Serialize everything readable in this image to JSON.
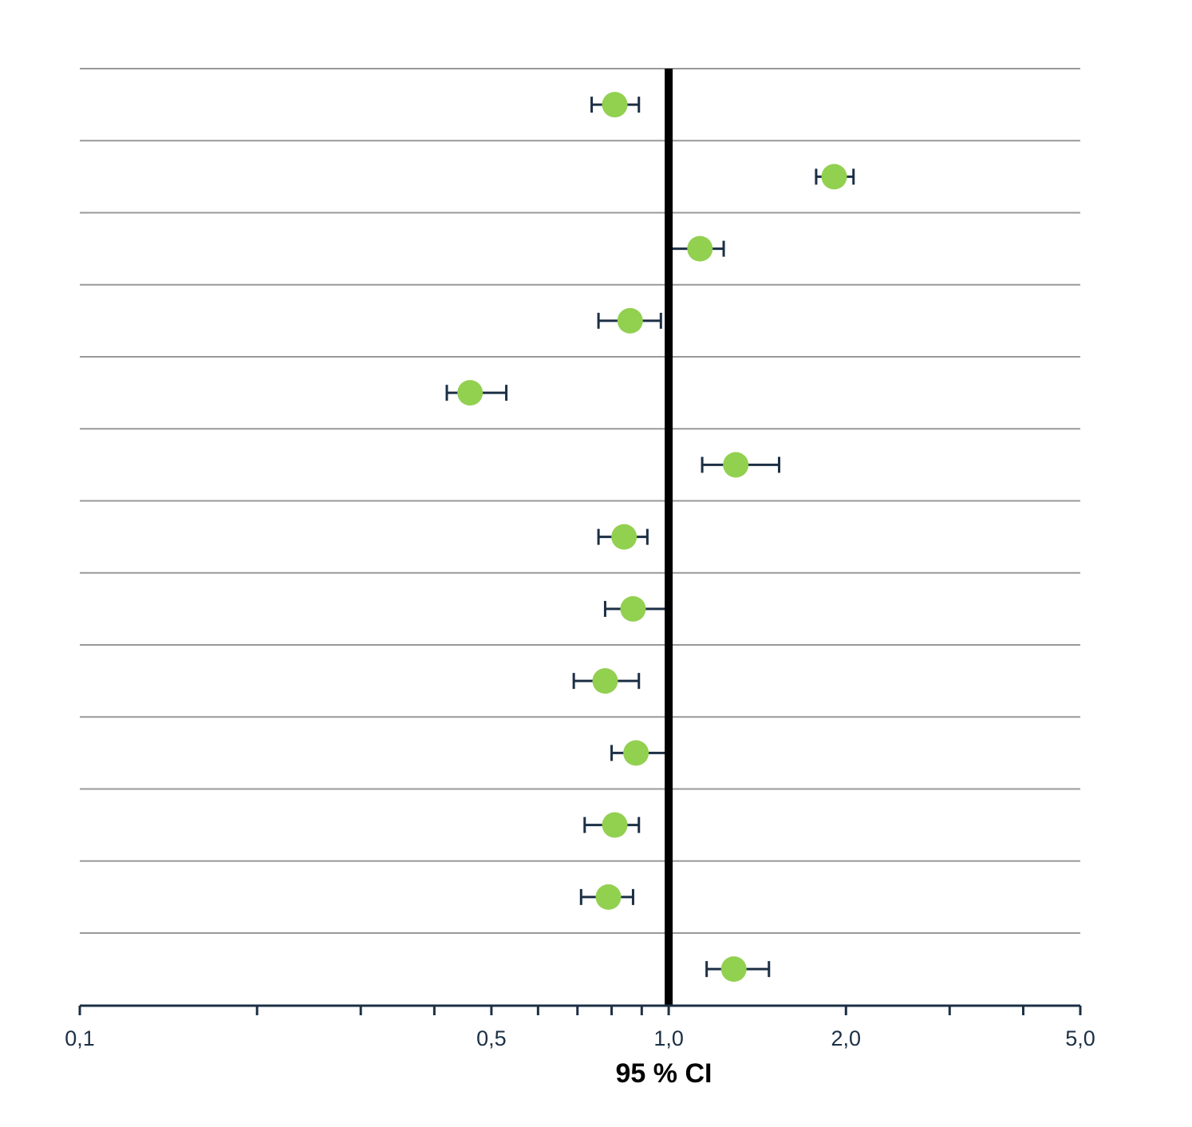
{
  "colors": {
    "background": "#ffffff",
    "gridline": "#999999",
    "reference_line": "#000000",
    "axis": "#1c2f45",
    "error_bar": "#1c2f45",
    "marker": "#92d050",
    "tick_label": "#1c2f45",
    "axis_title": "#000000"
  },
  "chart_data": {
    "type": "scatter",
    "subtype": "forest-plot",
    "title": "",
    "xlabel": "95 % CI",
    "ylabel": "",
    "x_scale": "log",
    "xlim": [
      0.1,
      5.0
    ],
    "x_ticks_labeled": [
      {
        "value": 0.1,
        "label": "0,1"
      },
      {
        "value": 0.5,
        "label": "0,5"
      },
      {
        "value": 1.0,
        "label": "1,0"
      },
      {
        "value": 2.0,
        "label": "2,0"
      },
      {
        "value": 5.0,
        "label": "5,0"
      }
    ],
    "x_ticks_minor": [
      0.2,
      0.3,
      0.4,
      0.6,
      0.7,
      0.8,
      0.9,
      3.0,
      4.0
    ],
    "reference_line": 1.0,
    "horizontal_gridlines": true,
    "legend": "none",
    "marker": "circle",
    "rows": [
      {
        "estimate": 0.81,
        "lower": 0.74,
        "upper": 0.89
      },
      {
        "estimate": 1.91,
        "lower": 1.78,
        "upper": 2.06
      },
      {
        "estimate": 1.13,
        "lower": 1.01,
        "upper": 1.24
      },
      {
        "estimate": 0.86,
        "lower": 0.76,
        "upper": 0.97
      },
      {
        "estimate": 0.46,
        "lower": 0.42,
        "upper": 0.53
      },
      {
        "estimate": 1.3,
        "lower": 1.14,
        "upper": 1.54
      },
      {
        "estimate": 0.84,
        "lower": 0.76,
        "upper": 0.92
      },
      {
        "estimate": 0.87,
        "lower": 0.78,
        "upper": 0.99
      },
      {
        "estimate": 0.78,
        "lower": 0.69,
        "upper": 0.89
      },
      {
        "estimate": 0.88,
        "lower": 0.8,
        "upper": 0.99
      },
      {
        "estimate": 0.81,
        "lower": 0.72,
        "upper": 0.89
      },
      {
        "estimate": 0.79,
        "lower": 0.71,
        "upper": 0.87
      },
      {
        "estimate": 1.29,
        "lower": 1.16,
        "upper": 1.48
      }
    ]
  }
}
